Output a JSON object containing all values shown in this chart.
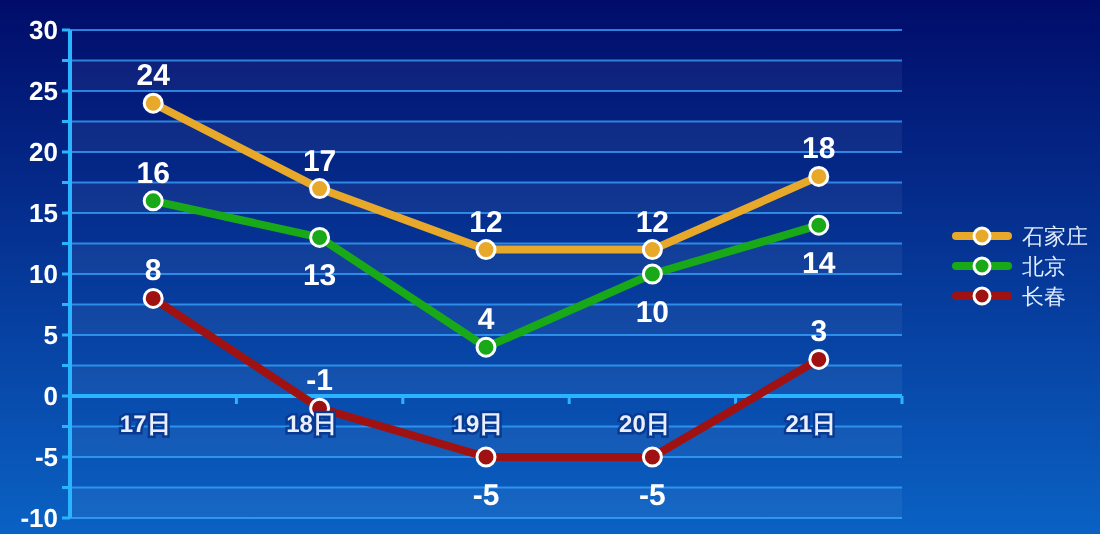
{
  "chart_data": {
    "type": "line",
    "categories": [
      "17日",
      "18日",
      "19日",
      "20日",
      "21日"
    ],
    "series": [
      {
        "name": "石家庄",
        "color": "#e8a82a",
        "values": [
          24,
          17,
          12,
          12,
          18
        ]
      },
      {
        "name": "北京",
        "color": "#18a818",
        "values": [
          16,
          13,
          4,
          10,
          14
        ]
      },
      {
        "name": "长春",
        "color": "#a01212",
        "values": [
          8,
          -1,
          -5,
          -5,
          3
        ]
      }
    ],
    "ylim": [
      -10,
      30
    ],
    "yticks": [
      -10,
      {
        "value": -7.5,
        "label": null
      },
      -5,
      {
        "value": -2.5,
        "label": null
      },
      0,
      {
        "value": 2.5,
        "label": null
      },
      5,
      {
        "value": 7.5,
        "label": null
      },
      10,
      {
        "value": 12.5,
        "label": null
      },
      15,
      {
        "value": 17.5,
        "label": null
      },
      20,
      {
        "value": 22.5,
        "label": null
      },
      25,
      {
        "value": 27.5,
        "label": null
      },
      30
    ],
    "grid": "y",
    "legend": "right",
    "marker": "circle",
    "data_labels": true
  }
}
